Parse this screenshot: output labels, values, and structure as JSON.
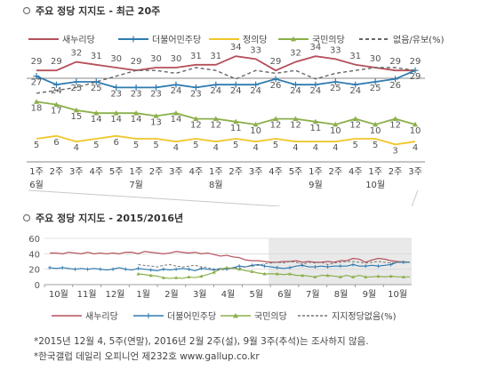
{
  "chart_data": [
    {
      "type": "line",
      "title": "주요 정당 지지도 - 최근 20주",
      "legend_position": "top",
      "x_labels": [
        {
          "week": "1주",
          "month": "6월"
        },
        {
          "week": "2주",
          "month": ""
        },
        {
          "week": "3주",
          "month": ""
        },
        {
          "week": "4주",
          "month": ""
        },
        {
          "week": "5주",
          "month": ""
        },
        {
          "week": "1주",
          "month": "7월"
        },
        {
          "week": "2주",
          "month": ""
        },
        {
          "week": "3주",
          "month": ""
        },
        {
          "week": "4주",
          "month": ""
        },
        {
          "week": "1주",
          "month": "8월"
        },
        {
          "week": "2주",
          "month": ""
        },
        {
          "week": "3주",
          "month": ""
        },
        {
          "week": "4주",
          "month": ""
        },
        {
          "week": "5주",
          "month": ""
        },
        {
          "week": "1주",
          "month": "9월"
        },
        {
          "week": "2주",
          "month": ""
        },
        {
          "week": "4주",
          "month": ""
        },
        {
          "week": "1주",
          "month": "10월"
        },
        {
          "week": "2주",
          "month": ""
        },
        {
          "week": "3주",
          "month": ""
        }
      ],
      "series": [
        {
          "name": "새누리당",
          "color": "#b5505a",
          "values": [
            29,
            29,
            32,
            31,
            30,
            29,
            30,
            30,
            31,
            31,
            34,
            33,
            29,
            32,
            34,
            33,
            31,
            30,
            29,
            29
          ]
        },
        {
          "name": "더불어민주당",
          "color": "#2e7bb0",
          "values": [
            27,
            24,
            25,
            25,
            23,
            23,
            23,
            24,
            23,
            24,
            24,
            24,
            26,
            24,
            24,
            25,
            24,
            25,
            26,
            29
          ]
        },
        {
          "name": "정의당",
          "color": "#f0c62a",
          "values": [
            5,
            6,
            4,
            5,
            6,
            5,
            5,
            4,
            5,
            4,
            5,
            4,
            5,
            4,
            4,
            4,
            5,
            5,
            3,
            4
          ]
        },
        {
          "name": "국민의당",
          "color": "#8bb04a",
          "values": [
            18,
            17,
            15,
            14,
            14,
            14,
            13,
            14,
            12,
            12,
            11,
            10,
            12,
            12,
            11,
            10,
            12,
            10,
            12,
            10
          ]
        },
        {
          "name": "없음/유보(%)",
          "color": "#666666",
          "dashed": true,
          "values": [
            21,
            22,
            23,
            25,
            27,
            29,
            29,
            28,
            30,
            29,
            26,
            29,
            28,
            29,
            26,
            28,
            29,
            30,
            30,
            29
          ]
        }
      ]
    },
    {
      "type": "line",
      "title": "주요 정당 지지도 - 2015/2016년",
      "legend_position": "bottom",
      "ylim": [
        0,
        60
      ],
      "yticks": [
        0,
        20,
        40,
        60
      ],
      "x_tick_labels": [
        "10월",
        "11월",
        "12월",
        "1월",
        "2월",
        "3월",
        "4월",
        "5월",
        "6월",
        "7월",
        "8월",
        "9월",
        "10월"
      ],
      "highlight_from": "6월",
      "series": [
        {
          "name": "새누리당",
          "color": "#b5505a",
          "values": [
            41,
            41,
            40,
            42,
            41,
            40,
            42,
            40,
            41,
            40,
            41,
            40,
            42,
            42,
            40,
            43,
            42,
            41,
            40,
            41,
            43,
            42,
            41,
            42,
            40,
            41,
            39,
            37,
            38,
            36,
            35,
            32,
            31,
            31,
            30,
            29,
            29,
            30,
            30,
            31,
            29,
            30,
            29,
            29,
            30,
            29,
            31,
            31,
            34,
            33,
            29,
            32,
            34,
            33,
            31,
            30,
            29,
            29
          ]
        },
        {
          "name": "더불어민주당",
          "color": "#2e7bb0",
          "values": [
            22,
            21,
            22,
            21,
            20,
            21,
            20,
            21,
            20,
            19,
            20,
            22,
            20,
            19,
            21,
            20,
            19,
            18,
            20,
            19,
            20,
            21,
            20,
            18,
            21,
            20,
            19,
            21,
            20,
            22,
            24,
            23,
            25,
            26,
            24,
            23,
            22,
            21,
            22,
            24,
            25,
            23,
            23,
            24,
            23,
            24,
            24,
            24,
            26,
            24,
            24,
            25,
            24,
            25,
            26,
            29,
            29,
            29
          ]
        },
        {
          "name": "국민의당",
          "color": "#8bb04a",
          "values": [
            null,
            null,
            null,
            null,
            null,
            null,
            null,
            null,
            null,
            null,
            null,
            null,
            null,
            null,
            14,
            13,
            12,
            11,
            9,
            8,
            9,
            8,
            10,
            9,
            11,
            13,
            16,
            20,
            22,
            21,
            20,
            18,
            17,
            15,
            14,
            14,
            14,
            13,
            14,
            12,
            12,
            11,
            10,
            12,
            12,
            11,
            10,
            12,
            10,
            12,
            10,
            10,
            11,
            10,
            11,
            10,
            10,
            10
          ]
        },
        {
          "name": "지지정당없음(%)",
          "color": "#777777",
          "dashed": true,
          "values": [
            null,
            null,
            null,
            null,
            null,
            null,
            null,
            null,
            null,
            null,
            null,
            null,
            null,
            null,
            26,
            25,
            24,
            23,
            25,
            26,
            24,
            23,
            24,
            25,
            23,
            22,
            20,
            19,
            20,
            22,
            21,
            23,
            24,
            25,
            27,
            28,
            29,
            28,
            30,
            29,
            26,
            29,
            28,
            29,
            26,
            28,
            29,
            30,
            30,
            29,
            28,
            29,
            30,
            29,
            28,
            29,
            30,
            29
          ]
        }
      ]
    }
  ],
  "notes": {
    "line1": "*2015년 12월 4, 5주(연말), 2016년 2월 2주(설), 9월 3주(추석)는 조사하지 않음.",
    "line2": "*한국갤럽 데일리 오피니언 제232호 www.gallup.co.kr"
  }
}
